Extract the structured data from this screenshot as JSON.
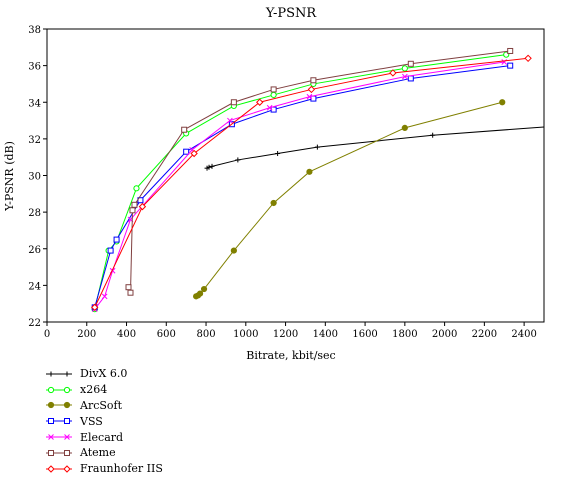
{
  "chart_data": {
    "type": "line",
    "title": "Y-PSNR",
    "xlabel": "Bitrate, kbit/sec",
    "ylabel": "Y-PSNR (dB)",
    "xlim": [
      0,
      2500
    ],
    "ylim": [
      22,
      38
    ],
    "xticks": [
      "0",
      "200",
      "400",
      "600",
      "800",
      "1000",
      "1200",
      "1400",
      "1600",
      "1800",
      "2000",
      "2200",
      "2400"
    ],
    "yticks": [
      "22",
      "24",
      "26",
      "28",
      "30",
      "32",
      "34",
      "36",
      "38"
    ],
    "grid": false,
    "legend_position": "bottom-left",
    "series": [
      {
        "name": "DivX 6.0",
        "color": "#000000",
        "marker": "plus",
        "x": [
          805,
          815,
          830,
          960,
          1160,
          1360,
          1940,
          2520
        ],
        "y": [
          30.4,
          30.45,
          30.5,
          30.85,
          31.2,
          31.55,
          32.2,
          32.65
        ]
      },
      {
        "name": "x264",
        "color": "#00ff00",
        "marker": "circle",
        "x": [
          240,
          310,
          350,
          450,
          700,
          940,
          1140,
          1340,
          1800,
          2310
        ],
        "y": [
          22.7,
          25.9,
          26.4,
          29.3,
          32.3,
          33.8,
          34.4,
          35.0,
          35.85,
          36.6
        ]
      },
      {
        "name": "ArcSoft",
        "color": "#808000",
        "marker": "dot",
        "x": [
          750,
          760,
          770,
          790,
          940,
          1140,
          1320,
          1800,
          2290
        ],
        "y": [
          23.4,
          23.45,
          23.55,
          23.8,
          25.9,
          28.5,
          30.2,
          32.6,
          34.0
        ]
      },
      {
        "name": "VSS",
        "color": "#0000ff",
        "marker": "square",
        "x": [
          240,
          320,
          350,
          470,
          700,
          930,
          1140,
          1340,
          1830,
          2330
        ],
        "y": [
          22.8,
          25.9,
          26.5,
          28.65,
          31.3,
          32.8,
          33.6,
          34.2,
          35.3,
          36.0
        ]
      },
      {
        "name": "Elecard",
        "color": "#ff00ff",
        "marker": "x",
        "x": [
          240,
          290,
          330,
          420,
          730,
          920,
          1120,
          1320,
          1800,
          2300
        ],
        "y": [
          22.7,
          23.4,
          24.8,
          27.6,
          31.4,
          33.0,
          33.7,
          34.3,
          35.4,
          36.2
        ]
      },
      {
        "name": "Ateme",
        "color": "#804040",
        "marker": "square",
        "x": [
          410,
          420,
          430,
          440,
          690,
          940,
          1140,
          1340,
          1830,
          2330
        ],
        "y": [
          23.9,
          23.6,
          28.1,
          28.4,
          32.5,
          34.0,
          34.7,
          35.2,
          36.1,
          36.8
        ]
      },
      {
        "name": "Fraunhofer IIS",
        "color": "#ff0000",
        "marker": "diamond",
        "x": [
          240,
          480,
          740,
          1070,
          1330,
          1740,
          2420
        ],
        "y": [
          22.8,
          28.3,
          31.2,
          34.0,
          34.7,
          35.6,
          36.4
        ]
      }
    ]
  }
}
